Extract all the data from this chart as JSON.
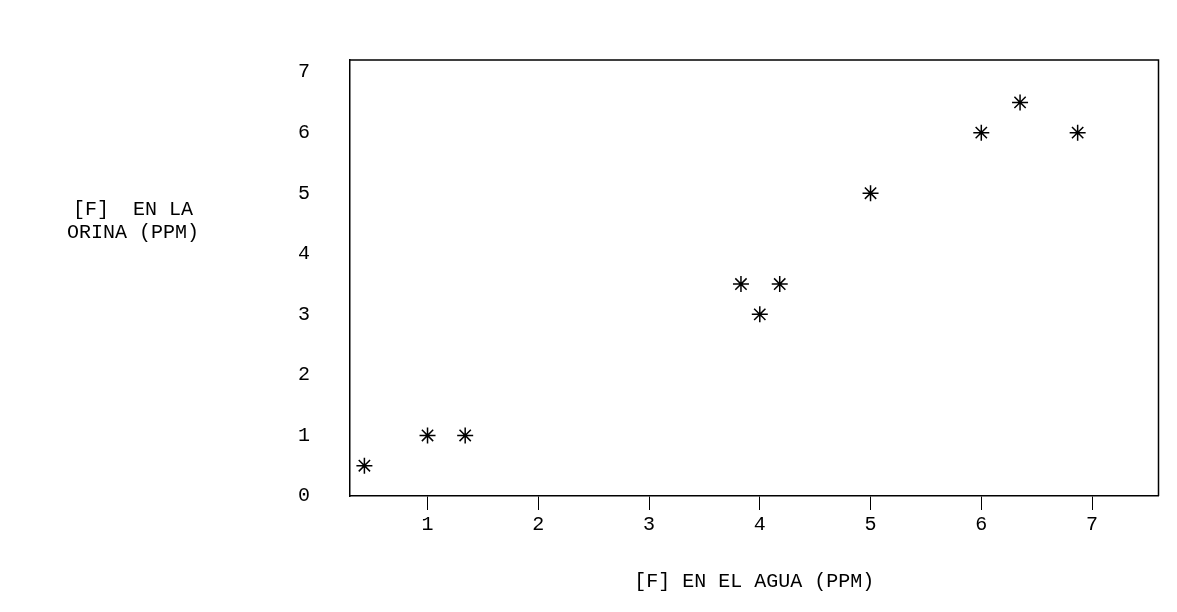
{
  "chart_data": {
    "type": "scatter",
    "xlabel": "[F] EN EL AGUA (PPM)",
    "ylabel": "[F]  EN LA\nORINA (PPM)",
    "x": [
      0.43,
      1.0,
      1.34,
      3.83,
      4.0,
      4.18,
      5.0,
      6.0,
      6.35,
      6.87
    ],
    "series": [
      {
        "color": "#000000",
        "values": [
          0.5,
          1,
          1,
          3.5,
          3,
          3.5,
          5,
          6,
          6.5,
          6
        ]
      }
    ],
    "xlim": [
      0.3,
      7.6
    ],
    "xticks": [
      1,
      2,
      3,
      4,
      5,
      6,
      7
    ],
    "ylim": [
      0,
      7.2
    ],
    "yticks": [
      0,
      1,
      2,
      3,
      4,
      5,
      6,
      7
    ],
    "grid": false,
    "legend": false,
    "marker": "cross"
  }
}
